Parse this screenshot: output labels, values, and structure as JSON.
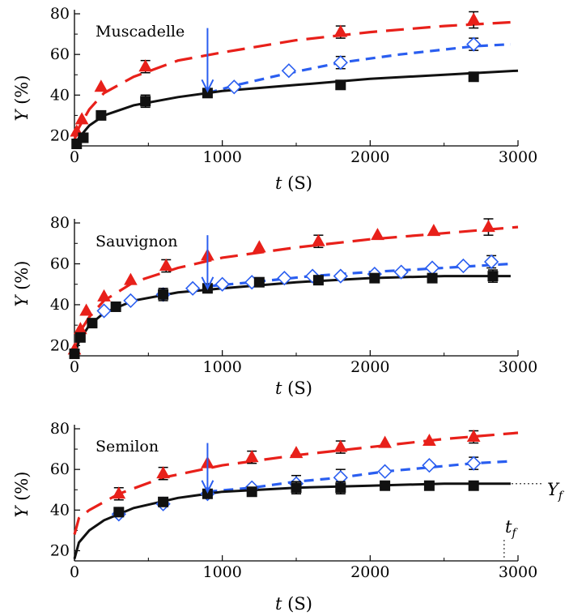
{
  "chart_data": [
    {
      "type": "scatter",
      "title": "Muscadelle",
      "xlabel_var": "t",
      "xlabel_unit": "(S)",
      "ylabel_var": "Y",
      "ylabel_unit": "(%)",
      "xlim": [
        0,
        3000
      ],
      "ylim": [
        15,
        82
      ],
      "xticks": [
        0,
        1000,
        2000,
        3000
      ],
      "yticks": [
        20,
        40,
        60,
        80
      ],
      "arrow_x": 900,
      "arrow_y_from": 73,
      "arrow_y_to": 42,
      "series": [
        {
          "marker": "triangle",
          "color": "#e8201a",
          "line": "long-dash",
          "points": [
            [
              15,
              22
            ],
            [
              50,
              28
            ],
            [
              180,
              44
            ],
            [
              480,
              54
            ],
            [
              1800,
              71
            ],
            [
              2700,
              77
            ]
          ],
          "errors": [
            null,
            null,
            null,
            3,
            3,
            4
          ],
          "curve": [
            [
              0,
              18
            ],
            [
              30,
              24
            ],
            [
              100,
              33
            ],
            [
              200,
              41
            ],
            [
              400,
              49
            ],
            [
              700,
              57
            ],
            [
              1000,
              61
            ],
            [
              1500,
              67
            ],
            [
              2000,
              71
            ],
            [
              2500,
              74
            ],
            [
              3000,
              76
            ]
          ]
        },
        {
          "marker": "diamond",
          "color": "#2a5ef0",
          "line": "short-dash",
          "points": [
            [
              1080,
              44
            ],
            [
              1450,
              52
            ],
            [
              1800,
              56
            ],
            [
              2700,
              65
            ]
          ],
          "errors": [
            null,
            null,
            3,
            3
          ],
          "curve": [
            [
              900,
              41
            ],
            [
              1100,
              45
            ],
            [
              1400,
              50
            ],
            [
              1800,
              56
            ],
            [
              2200,
              60
            ],
            [
              2700,
              64
            ],
            [
              2950,
              65
            ]
          ]
        },
        {
          "marker": "square",
          "color": "#111111",
          "line": "solid",
          "points": [
            [
              15,
              16
            ],
            [
              60,
              19
            ],
            [
              180,
              30
            ],
            [
              480,
              37
            ],
            [
              900,
              41
            ],
            [
              1800,
              45
            ],
            [
              2700,
              49
            ]
          ],
          "errors": [
            null,
            null,
            2,
            3,
            2,
            2,
            2
          ],
          "curve": [
            [
              0,
              15
            ],
            [
              30,
              19
            ],
            [
              100,
              25
            ],
            [
              200,
              30
            ],
            [
              400,
              35
            ],
            [
              700,
              39
            ],
            [
              1000,
              42
            ],
            [
              1500,
              45
            ],
            [
              2000,
              48
            ],
            [
              2500,
              50
            ],
            [
              3000,
              52
            ]
          ]
        }
      ]
    },
    {
      "type": "scatter",
      "title": "Sauvignon",
      "xlabel_var": "t",
      "xlabel_unit": "(S)",
      "ylabel_var": "Y",
      "ylabel_unit": "(%)",
      "xlim": [
        0,
        3000
      ],
      "ylim": [
        15,
        82
      ],
      "xticks": [
        0,
        1000,
        2000,
        3000
      ],
      "yticks": [
        20,
        40,
        60,
        80
      ],
      "arrow_x": 900,
      "arrow_y_from": 74,
      "arrow_y_to": 48,
      "series": [
        {
          "marker": "triangle",
          "color": "#e8201a",
          "line": "long-dash",
          "points": [
            [
              0,
              18
            ],
            [
              40,
              28
            ],
            [
              80,
              37
            ],
            [
              200,
              44
            ],
            [
              380,
              52
            ],
            [
              620,
              59
            ],
            [
              900,
              64
            ],
            [
              1250,
              68
            ],
            [
              1650,
              71
            ],
            [
              2050,
              74
            ],
            [
              2430,
              76
            ],
            [
              2800,
              78
            ]
          ],
          "errors": [
            null,
            null,
            null,
            null,
            null,
            3,
            null,
            null,
            3,
            null,
            null,
            4
          ],
          "curve": [
            [
              0,
              16
            ],
            [
              30,
              26
            ],
            [
              100,
              34
            ],
            [
              200,
              42
            ],
            [
              400,
              51
            ],
            [
              700,
              58
            ],
            [
              1000,
              63
            ],
            [
              1500,
              68
            ],
            [
              2000,
              72
            ],
            [
              2500,
              75
            ],
            [
              3000,
              78
            ]
          ]
        },
        {
          "marker": "diamond",
          "color": "#2a5ef0",
          "line": "short-dash",
          "points": [
            [
              200,
              37
            ],
            [
              380,
              42
            ],
            [
              600,
              45
            ],
            [
              800,
              48
            ],
            [
              1000,
              50
            ],
            [
              1200,
              51
            ],
            [
              1420,
              53
            ],
            [
              1610,
              54
            ],
            [
              1800,
              54
            ],
            [
              2030,
              55
            ],
            [
              2210,
              56
            ],
            [
              2420,
              58
            ],
            [
              2630,
              59
            ],
            [
              2820,
              61
            ]
          ],
          "errors": [
            null,
            null,
            null,
            null,
            null,
            null,
            null,
            null,
            null,
            null,
            null,
            null,
            null,
            3
          ],
          "curve": [
            [
              900,
              49
            ],
            [
              1200,
              51
            ],
            [
              1600,
              54
            ],
            [
              2000,
              56
            ],
            [
              2500,
              58
            ],
            [
              2950,
              60
            ]
          ]
        },
        {
          "marker": "square",
          "color": "#111111",
          "line": "solid",
          "points": [
            [
              0,
              16
            ],
            [
              40,
              24
            ],
            [
              120,
              31
            ],
            [
              280,
              39
            ],
            [
              600,
              45
            ],
            [
              900,
              48
            ],
            [
              1250,
              51
            ],
            [
              1650,
              52
            ],
            [
              2030,
              53
            ],
            [
              2420,
              53
            ],
            [
              2830,
              54
            ]
          ],
          "errors": [
            null,
            null,
            null,
            null,
            3,
            null,
            null,
            null,
            null,
            null,
            3
          ],
          "curve": [
            [
              0,
              15
            ],
            [
              30,
              22
            ],
            [
              100,
              30
            ],
            [
              200,
              36
            ],
            [
              400,
              42
            ],
            [
              700,
              46
            ],
            [
              1000,
              48
            ],
            [
              1500,
              51
            ],
            [
              2000,
              53
            ],
            [
              2500,
              54
            ],
            [
              2950,
              54
            ]
          ]
        }
      ]
    },
    {
      "type": "scatter",
      "title": "Semilon",
      "xlabel_var": "t",
      "xlabel_unit": "(S)",
      "ylabel_var": "Y",
      "ylabel_unit": "(%)",
      "xlim": [
        0,
        3000
      ],
      "ylim": [
        15,
        82
      ],
      "xticks": [
        0,
        1000,
        2000,
        3000
      ],
      "yticks": [
        20,
        40,
        60,
        80
      ],
      "arrow_x": 900,
      "arrow_y_from": 73,
      "arrow_y_to": 49,
      "yf_label_var": "Y",
      "yf_label_sub": "f",
      "yf_value": 53,
      "tf_label_var": "t",
      "tf_label_sub": "f",
      "tf_value": 2950,
      "series": [
        {
          "marker": "triangle",
          "color": "#e8201a",
          "line": "long-dash",
          "points": [
            [
              300,
              48
            ],
            [
              600,
              58
            ],
            [
              900,
              63
            ],
            [
              1200,
              66
            ],
            [
              1500,
              68
            ],
            [
              1800,
              71
            ],
            [
              2100,
              73
            ],
            [
              2400,
              74
            ],
            [
              2700,
              76
            ]
          ],
          "errors": [
            3,
            3,
            null,
            3,
            null,
            3,
            null,
            null,
            3
          ],
          "curve": [
            [
              0,
              28
            ],
            [
              30,
              36
            ],
            [
              100,
              40
            ],
            [
              300,
              48
            ],
            [
              600,
              56
            ],
            [
              1000,
              62
            ],
            [
              1500,
              67
            ],
            [
              2000,
              71
            ],
            [
              2500,
              75
            ],
            [
              3000,
              78
            ]
          ]
        },
        {
          "marker": "diamond",
          "color": "#2a5ef0",
          "line": "short-dash",
          "points": [
            [
              300,
              38
            ],
            [
              600,
              43
            ],
            [
              900,
              48
            ],
            [
              1200,
              51
            ],
            [
              1500,
              53
            ],
            [
              1800,
              56
            ],
            [
              2100,
              59
            ],
            [
              2400,
              62
            ],
            [
              2700,
              63
            ]
          ],
          "errors": [
            null,
            null,
            null,
            null,
            4,
            4,
            null,
            null,
            3
          ],
          "curve": [
            [
              900,
              49
            ],
            [
              1200,
              51
            ],
            [
              1500,
              54
            ],
            [
              1800,
              56
            ],
            [
              2100,
              59
            ],
            [
              2400,
              61
            ],
            [
              2700,
              63
            ],
            [
              2950,
              64
            ]
          ]
        },
        {
          "marker": "square",
          "color": "#111111",
          "line": "solid",
          "points": [
            [
              300,
              39
            ],
            [
              600,
              44
            ],
            [
              900,
              48
            ],
            [
              1200,
              49
            ],
            [
              1500,
              51
            ],
            [
              1800,
              51
            ],
            [
              2100,
              52
            ],
            [
              2400,
              52
            ],
            [
              2700,
              52
            ]
          ],
          "errors": [
            2,
            2,
            null,
            2,
            3,
            3,
            null,
            null,
            2
          ],
          "curve": [
            [
              0,
              16
            ],
            [
              30,
              24
            ],
            [
              100,
              30
            ],
            [
              200,
              35
            ],
            [
              400,
              41
            ],
            [
              700,
              46
            ],
            [
              1000,
              49
            ],
            [
              1500,
              51
            ],
            [
              2000,
              52
            ],
            [
              2500,
              53
            ],
            [
              2950,
              53
            ]
          ]
        }
      ]
    }
  ]
}
